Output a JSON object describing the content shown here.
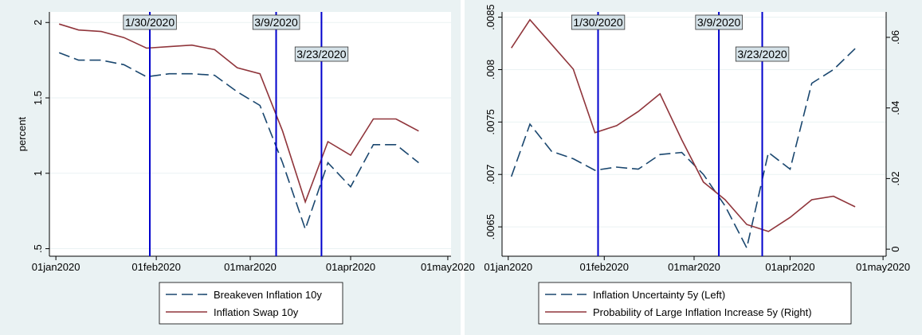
{
  "chart_data": [
    {
      "type": "line",
      "x": [
        "2020-01-02",
        "2020-01-08",
        "2020-01-15",
        "2020-01-22",
        "2020-01-29",
        "2020-02-05",
        "2020-02-12",
        "2020-02-19",
        "2020-02-26",
        "2020-03-04",
        "2020-03-11",
        "2020-03-18",
        "2020-03-25",
        "2020-04-01",
        "2020-04-08",
        "2020-04-15",
        "2020-04-22"
      ],
      "xlim": [
        "2019-12-30",
        "2020-05-02"
      ],
      "xticks": [
        {
          "value": "2020-01-01",
          "label": "01jan2020"
        },
        {
          "value": "2020-02-01",
          "label": "01feb2020"
        },
        {
          "value": "2020-03-01",
          "label": "01mar2020"
        },
        {
          "value": "2020-04-01",
          "label": "01apr2020"
        },
        {
          "value": "2020-05-01",
          "label": "01may2020"
        }
      ],
      "ylabel": "percent",
      "ylim": [
        0.45,
        2.07
      ],
      "yticks": [
        {
          "value": 0.5,
          "label": ".5"
        },
        1,
        1.5,
        2
      ],
      "grid": true,
      "series": [
        {
          "name": "Breakeven Inflation 10y",
          "color": "#1a476f",
          "dash": true,
          "values": [
            1.8,
            1.75,
            1.75,
            1.72,
            1.64,
            1.66,
            1.66,
            1.65,
            1.54,
            1.45,
            1.07,
            0.63,
            1.07,
            0.91,
            1.19,
            1.19,
            1.07
          ]
        },
        {
          "name": "Inflation Swap 10y",
          "color": "#90353b",
          "dash": false,
          "values": [
            1.99,
            1.95,
            1.94,
            1.9,
            1.83,
            1.84,
            1.85,
            1.82,
            1.7,
            1.66,
            1.28,
            0.81,
            1.21,
            1.12,
            1.36,
            1.36,
            1.28
          ]
        }
      ],
      "annotations": [
        {
          "x": "2020-01-30",
          "label": "1/30/2020"
        },
        {
          "x": "2020-03-09",
          "label": "3/9/2020"
        },
        {
          "x": "2020-03-23",
          "label": "3/23/2020"
        }
      ]
    },
    {
      "type": "line",
      "x": [
        "2020-01-02",
        "2020-01-08",
        "2020-01-15",
        "2020-01-22",
        "2020-01-29",
        "2020-02-05",
        "2020-02-12",
        "2020-02-19",
        "2020-02-26",
        "2020-03-04",
        "2020-03-11",
        "2020-03-18",
        "2020-03-25",
        "2020-04-01",
        "2020-04-08",
        "2020-04-15",
        "2020-04-22"
      ],
      "xlim": [
        "2019-12-30",
        "2020-05-02"
      ],
      "xticks": [
        {
          "value": "2020-01-01",
          "label": "01jan2020"
        },
        {
          "value": "2020-02-01",
          "label": "01feb2020"
        },
        {
          "value": "2020-03-01",
          "label": "01mar2020"
        },
        {
          "value": "2020-04-01",
          "label": "01apr2020"
        },
        {
          "value": "2020-05-01",
          "label": "01may2020"
        }
      ],
      "ylim": [
        0.00622,
        0.00855
      ],
      "yticks": [
        {
          "value": 0.0065,
          "label": ".0065"
        },
        {
          "value": 0.007,
          "label": ".007"
        },
        {
          "value": 0.0075,
          "label": ".0075"
        },
        {
          "value": 0.008,
          "label": ".008"
        },
        {
          "value": 0.0085,
          "label": ".0085"
        }
      ],
      "y2lim": [
        -0.002,
        0.0672
      ],
      "y2ticks": [
        0,
        {
          "value": 0.02,
          "label": ".02"
        },
        {
          "value": 0.04,
          "label": ".04"
        },
        {
          "value": 0.06,
          "label": ".06"
        }
      ],
      "grid": true,
      "series": [
        {
          "name": "Inflation Uncertainty 5y (Left)",
          "color": "#1a476f",
          "dash": true,
          "values": [
            0.00698,
            0.00748,
            0.00722,
            0.00715,
            0.00704,
            0.00707,
            0.00705,
            0.00719,
            0.00721,
            0.007,
            0.0067,
            0.0063,
            0.00721,
            0.00705,
            0.00787,
            0.008,
            0.0082
          ]
        },
        {
          "name": "Probability of Large Inflation Increase 5y (Right)",
          "color": "#90353b",
          "dash": false,
          "axis": "y2",
          "values": [
            0.057,
            0.065,
            0.058,
            0.051,
            0.033,
            0.035,
            0.039,
            0.044,
            0.031,
            0.019,
            0.014,
            0.007,
            0.005,
            0.009,
            0.014,
            0.015,
            0.012
          ]
        }
      ],
      "annotations": [
        {
          "x": "2020-01-30",
          "label": "1/30/2020"
        },
        {
          "x": "2020-03-09",
          "label": "3/9/2020"
        },
        {
          "x": "2020-03-23",
          "label": "3/23/2020"
        }
      ]
    }
  ]
}
